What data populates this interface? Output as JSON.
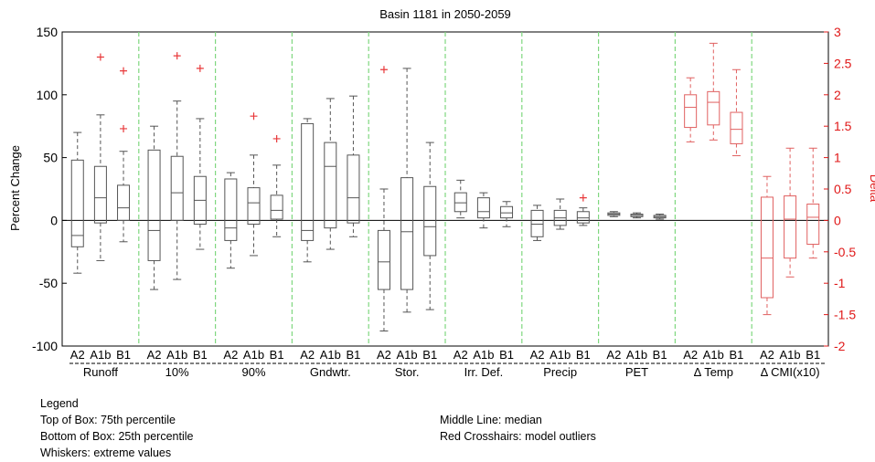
{
  "chart_data": {
    "type": "box",
    "title": "Basin 1181 in 2050-2059",
    "ylabel_left": "Percent Change",
    "ylabel_right": "Delta",
    "ylim_left": [
      -100,
      150
    ],
    "yticks_left": [
      "-100",
      "-50",
      "0",
      "50",
      "100",
      "150"
    ],
    "ylim_right": [
      -2,
      3
    ],
    "yticks_right": [
      "-2",
      "-1.5",
      "-1",
      "-0.5",
      "0",
      "0.5",
      "1",
      "1.5",
      "2",
      "2.5",
      "3"
    ],
    "scenarios": [
      "A2",
      "A1b",
      "B1"
    ],
    "groups": [
      {
        "name": "Runoff",
        "axis": "left",
        "boxes": [
          {
            "scenario": "A2",
            "min": -42,
            "q1": -21,
            "median": -12,
            "q3": 48,
            "max": 70,
            "outliers": []
          },
          {
            "scenario": "A1b",
            "min": -32,
            "q1": -2,
            "median": 18,
            "q3": 43,
            "max": 84,
            "outliers": [
              130
            ]
          },
          {
            "scenario": "B1",
            "min": -17,
            "q1": 0,
            "median": 10,
            "q3": 28,
            "max": 55,
            "outliers": [
              73,
              119
            ]
          }
        ]
      },
      {
        "name": "10%",
        "axis": "left",
        "boxes": [
          {
            "scenario": "A2",
            "min": -55,
            "q1": -32,
            "median": -8,
            "q3": 56,
            "max": 75,
            "outliers": []
          },
          {
            "scenario": "A1b",
            "min": -47,
            "q1": 0,
            "median": 22,
            "q3": 51,
            "max": 95,
            "outliers": [
              131
            ]
          },
          {
            "scenario": "B1",
            "min": -23,
            "q1": -3,
            "median": 16,
            "q3": 35,
            "max": 81,
            "outliers": [
              121
            ]
          }
        ]
      },
      {
        "name": "90%",
        "axis": "left",
        "boxes": [
          {
            "scenario": "A2",
            "min": -38,
            "q1": -16,
            "median": -6,
            "q3": 33,
            "max": 38,
            "outliers": []
          },
          {
            "scenario": "A1b",
            "min": -28,
            "q1": -3,
            "median": 14,
            "q3": 26,
            "max": 52,
            "outliers": [
              83
            ]
          },
          {
            "scenario": "B1",
            "min": -13,
            "q1": 1,
            "median": 8,
            "q3": 20,
            "max": 44,
            "outliers": [
              65
            ]
          }
        ]
      },
      {
        "name": "Gndwtr.",
        "axis": "left",
        "boxes": [
          {
            "scenario": "A2",
            "min": -33,
            "q1": -16,
            "median": -8,
            "q3": 77,
            "max": 81,
            "outliers": []
          },
          {
            "scenario": "A1b",
            "min": -23,
            "q1": -6,
            "median": 43,
            "q3": 62,
            "max": 97,
            "outliers": []
          },
          {
            "scenario": "B1",
            "min": -13,
            "q1": -2,
            "median": 18,
            "q3": 52,
            "max": 99,
            "outliers": []
          }
        ]
      },
      {
        "name": "Stor.",
        "axis": "left",
        "boxes": [
          {
            "scenario": "A2",
            "min": -88,
            "q1": -55,
            "median": -33,
            "q3": -8,
            "max": 25,
            "outliers": [
              120
            ]
          },
          {
            "scenario": "A1b",
            "min": -73,
            "q1": -55,
            "median": -9,
            "q3": 34,
            "max": 121,
            "outliers": []
          },
          {
            "scenario": "B1",
            "min": -71,
            "q1": -28,
            "median": -5,
            "q3": 27,
            "max": 62,
            "outliers": []
          }
        ]
      },
      {
        "name": "Irr. Def.",
        "axis": "left",
        "boxes": [
          {
            "scenario": "A2",
            "min": 2,
            "q1": 7,
            "median": 14,
            "q3": 22,
            "max": 32,
            "outliers": []
          },
          {
            "scenario": "A1b",
            "min": -6,
            "q1": 2,
            "median": 7,
            "q3": 18,
            "max": 22,
            "outliers": []
          },
          {
            "scenario": "B1",
            "min": -5,
            "q1": 2,
            "median": 6,
            "q3": 11,
            "max": 15,
            "outliers": []
          }
        ]
      },
      {
        "name": "Precip",
        "axis": "left",
        "boxes": [
          {
            "scenario": "A2",
            "min": -16,
            "q1": -13,
            "median": -3,
            "q3": 8,
            "max": 12,
            "outliers": []
          },
          {
            "scenario": "A1b",
            "min": -7,
            "q1": -4,
            "median": 2,
            "q3": 8,
            "max": 17,
            "outliers": []
          },
          {
            "scenario": "B1",
            "min": -4,
            "q1": -2,
            "median": 2,
            "q3": 7,
            "max": 10,
            "outliers": [
              18
            ]
          }
        ]
      },
      {
        "name": "PET",
        "axis": "left",
        "boxes": [
          {
            "scenario": "A2",
            "min": 3,
            "q1": 4,
            "median": 5,
            "q3": 6,
            "max": 7,
            "outliers": []
          },
          {
            "scenario": "A1b",
            "min": 2,
            "q1": 3,
            "median": 4,
            "q3": 5,
            "max": 6,
            "outliers": []
          },
          {
            "scenario": "B1",
            "min": 1,
            "q1": 2,
            "median": 3,
            "q3": 4,
            "max": 5,
            "outliers": []
          }
        ]
      },
      {
        "name": "Δ Temp",
        "axis": "right",
        "boxes": [
          {
            "scenario": "A2",
            "min": 1.25,
            "q1": 1.48,
            "median": 1.8,
            "q3": 2.0,
            "max": 2.27,
            "outliers": []
          },
          {
            "scenario": "A1b",
            "min": 1.28,
            "q1": 1.52,
            "median": 1.88,
            "q3": 2.05,
            "max": 2.82,
            "outliers": []
          },
          {
            "scenario": "B1",
            "min": 1.03,
            "q1": 1.22,
            "median": 1.45,
            "q3": 1.72,
            "max": 2.4,
            "outliers": []
          }
        ]
      },
      {
        "name": "Δ CMI(x10)",
        "axis": "right",
        "boxes": [
          {
            "scenario": "A2",
            "min": -1.5,
            "q1": -1.23,
            "median": -0.6,
            "q3": 0.37,
            "max": 0.7,
            "outliers": []
          },
          {
            "scenario": "A1b",
            "min": -0.9,
            "q1": -0.6,
            "median": 0.02,
            "q3": 0.39,
            "max": 1.15,
            "outliers": []
          },
          {
            "scenario": "B1",
            "min": -0.6,
            "q1": -0.38,
            "median": 0.05,
            "q3": 0.26,
            "max": 1.15,
            "outliers": []
          }
        ]
      }
    ]
  },
  "legend": {
    "heading": "Legend",
    "top_of_box": "Top of Box: 75th percentile",
    "bottom_of_box": "Bottom of Box: 25th percentile",
    "whiskers": "Whiskers: extreme values",
    "middle_line": "Middle Line: median",
    "red_crosshairs": "Red Crosshairs: model outliers"
  },
  "colors": {
    "box_left": "#555555",
    "box_right": "#e06060",
    "outlier": "#e8383a",
    "right_axis": "#e01818",
    "separator": "#7fd77f"
  }
}
